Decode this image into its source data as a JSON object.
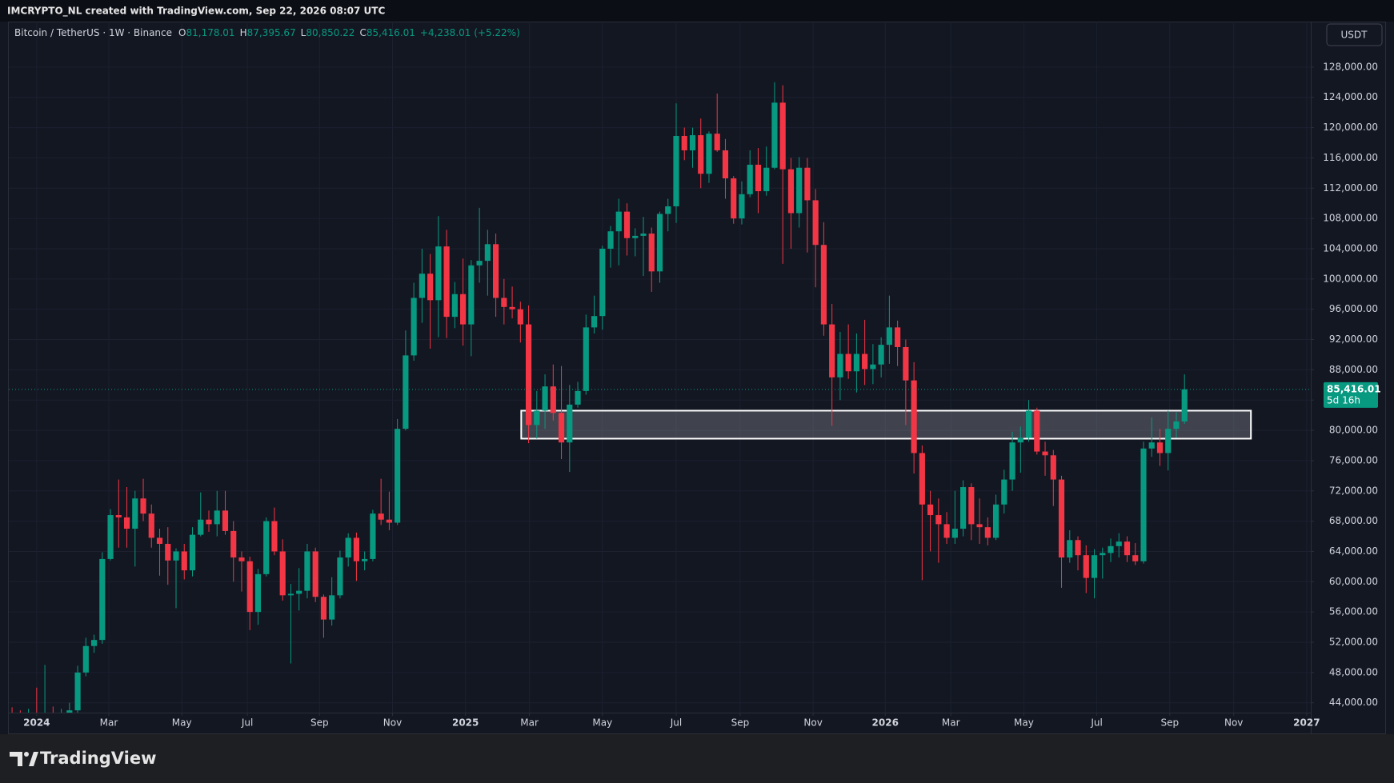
{
  "chart_data": {
    "type": "candlestick",
    "title": "IMCRYPTO_NL created with TradingView.com, Sep 22, 2026 08:07 UTC",
    "subtitle": "Bitcoin / TetherUS · 1W · Binance",
    "legend": [
      {
        "label": "O",
        "value": "81,178.01"
      },
      {
        "label": "H",
        "value": "87,395.67"
      },
      {
        "label": "L",
        "value": "80,850.22"
      },
      {
        "label": "C",
        "value": "85,416.01"
      }
    ],
    "change": "+4,238.01 (+5.22%)",
    "currency": "USDT",
    "brand": "TradingView",
    "up_color": "#089981",
    "down_color": "#f23645",
    "grid": true,
    "last_price": {
      "value": 85416.01,
      "label": "85,416.01",
      "countdown": "5d 16h"
    },
    "zone": {
      "x": [
        62.1,
        151.1
      ],
      "y": [
        78900,
        82600
      ]
    },
    "xlim": [
      -0.4,
      158.4
    ],
    "xticks": [
      {
        "value": 3.0,
        "label": "2024"
      },
      {
        "value": 11.8,
        "label": "Mar"
      },
      {
        "value": 20.7,
        "label": "May"
      },
      {
        "value": 28.7,
        "label": "Jul"
      },
      {
        "value": 37.5,
        "label": "Sep"
      },
      {
        "value": 46.4,
        "label": "Nov"
      },
      {
        "value": 55.3,
        "label": "2025"
      },
      {
        "value": 63.1,
        "label": "Mar"
      },
      {
        "value": 72.0,
        "label": "May"
      },
      {
        "value": 81.0,
        "label": "Jul"
      },
      {
        "value": 88.8,
        "label": "Sep"
      },
      {
        "value": 97.7,
        "label": "Nov"
      },
      {
        "value": 106.5,
        "label": "2026"
      },
      {
        "value": 114.5,
        "label": "Mar"
      },
      {
        "value": 123.4,
        "label": "May"
      },
      {
        "value": 132.3,
        "label": "Jul"
      },
      {
        "value": 141.2,
        "label": "Sep"
      },
      {
        "value": 149.0,
        "label": "Nov"
      },
      {
        "value": 157.9,
        "label": "2027"
      }
    ],
    "ylim": [
      42700,
      133800
    ],
    "yticks": [
      {
        "value": 44000,
        "label": "44,000.00"
      },
      {
        "value": 48000,
        "label": "48,000.00"
      },
      {
        "value": 52000,
        "label": "52,000.00"
      },
      {
        "value": 56000,
        "label": "56,000.00"
      },
      {
        "value": 60000,
        "label": "60,000.00"
      },
      {
        "value": 64000,
        "label": "64,000.00"
      },
      {
        "value": 68000,
        "label": "68,000.00"
      },
      {
        "value": 72000,
        "label": "72,000.00"
      },
      {
        "value": 76000,
        "label": "76,000.00"
      },
      {
        "value": 80000,
        "label": "80,000.00"
      },
      {
        "value": 84000,
        "label": "84,000.00"
      },
      {
        "value": 88000,
        "label": "88,000.00"
      },
      {
        "value": 92000,
        "label": "92,000.00"
      },
      {
        "value": 96000,
        "label": "96,000.00"
      },
      {
        "value": 100000,
        "label": "100,000.00"
      },
      {
        "value": 104000,
        "label": "104,000.00"
      },
      {
        "value": 108000,
        "label": "108,000.00"
      },
      {
        "value": 112000,
        "label": "112,000.00"
      },
      {
        "value": 116000,
        "label": "116,000.00"
      },
      {
        "value": 120000,
        "label": "120,000.00"
      },
      {
        "value": 124000,
        "label": "124,000.00"
      },
      {
        "value": 128000,
        "label": "128,000.00"
      }
    ],
    "open": [
      42600,
      42300,
      42000,
      42400,
      41800,
      42500,
      42000,
      42400,
      43000,
      48000,
      51500,
      52300,
      63000,
      68800,
      68500,
      67000,
      71000,
      69000,
      65800,
      65000,
      62800,
      64000,
      61500,
      66200,
      68200,
      67600,
      69400,
      66700,
      63200,
      62700,
      56000,
      61000,
      68000,
      64000,
      58200,
      58400,
      58800,
      64000,
      58000,
      55000,
      58200,
      63200,
      65800,
      62700,
      63000,
      69000,
      68200,
      67800,
      80200,
      89900,
      97500,
      100700,
      97200,
      104300,
      95000,
      98000,
      94000,
      101800,
      102400,
      104600,
      97500,
      96300,
      96000,
      94000,
      80700,
      82600,
      85800,
      82300,
      78400,
      83400,
      85200,
      93600,
      95100,
      104000,
      106300,
      108900,
      105400,
      105700,
      106000,
      101000,
      108600,
      109600,
      118900,
      117000,
      119000,
      113900,
      119200,
      117000,
      113300,
      108000,
      111200,
      115100,
      111600,
      114700,
      123300,
      114500,
      108700,
      114700,
      110400,
      104500,
      94000,
      87000,
      90100,
      87800,
      90100,
      88100,
      88700,
      91300,
      93600,
      91000,
      86600,
      77000,
      70200,
      68800,
      67600,
      65800,
      67000,
      72500,
      67600,
      67200,
      65800,
      70200,
      73500,
      78400,
      79000,
      82600,
      77200,
      76700,
      73500,
      63200,
      65500,
      63500,
      60500,
      63500,
      63800,
      64700,
      65300,
      63500,
      62700,
      77600,
      78400,
      77000,
      80200,
      81178.01
    ],
    "high": [
      43400,
      43000,
      43200,
      46000,
      49000,
      43500,
      43200,
      44000,
      48900,
      52600,
      53000,
      63900,
      69600,
      73500,
      72500,
      72000,
      73600,
      70200,
      67000,
      67200,
      64400,
      65000,
      67200,
      71800,
      69400,
      72000,
      72000,
      68000,
      64000,
      63300,
      61700,
      68500,
      69800,
      65600,
      59700,
      61800,
      65000,
      64500,
      58300,
      60600,
      64100,
      66400,
      66500,
      64000,
      69500,
      73600,
      71900,
      81500,
      93200,
      99500,
      104000,
      103300,
      108300,
      106500,
      99600,
      102700,
      102500,
      109400,
      106500,
      106000,
      100000,
      99000,
      97000,
      96500,
      85200,
      87400,
      88700,
      88500,
      86000,
      86400,
      95300,
      97800,
      104400,
      107000,
      110600,
      110000,
      106700,
      108200,
      106800,
      108900,
      110600,
      123200,
      120000,
      120000,
      121200,
      119500,
      124500,
      118500,
      113600,
      112900,
      117000,
      117300,
      117500,
      126000,
      125600,
      116000,
      116100,
      116000,
      111900,
      107500,
      96700,
      93000,
      94000,
      92800,
      94600,
      91400,
      92300,
      97800,
      94500,
      92000,
      89000,
      78000,
      72000,
      71000,
      69200,
      72000,
      73400,
      73000,
      71000,
      68500,
      71500,
      74800,
      79800,
      80500,
      84000,
      83000,
      78500,
      77400,
      74000,
      66800,
      66000,
      64800,
      64300,
      64500,
      65700,
      66400,
      66000,
      65100,
      78500,
      81700,
      80200,
      82600,
      82400,
      87395.67
    ],
    "low": [
      41800,
      41200,
      41500,
      41000,
      41300,
      41400,
      41600,
      42000,
      42600,
      47500,
      50600,
      51800,
      62800,
      64500,
      64500,
      62000,
      68000,
      64500,
      60800,
      59600,
      56500,
      60300,
      60700,
      66000,
      66600,
      66000,
      66200,
      60000,
      58700,
      53600,
      54300,
      60700,
      63500,
      57500,
      49200,
      56200,
      57800,
      57300,
      52600,
      54200,
      57800,
      62000,
      60100,
      61500,
      62700,
      67500,
      66800,
      67500,
      80000,
      89200,
      94200,
      90800,
      92300,
      92200,
      93500,
      91200,
      89800,
      99500,
      97800,
      95000,
      94000,
      94800,
      91600,
      78300,
      78900,
      80200,
      81300,
      76200,
      74500,
      83000,
      84700,
      92800,
      93300,
      101500,
      101800,
      103100,
      103000,
      100400,
      98300,
      99500,
      106300,
      107400,
      115700,
      114700,
      112000,
      112700,
      116800,
      110600,
      107300,
      107200,
      110800,
      108700,
      111000,
      114500,
      102000,
      104000,
      106800,
      103500,
      98900,
      92500,
      80600,
      84000,
      86800,
      85000,
      86000,
      86100,
      87000,
      88800,
      88500,
      80700,
      74300,
      60200,
      64000,
      62500,
      65000,
      65000,
      66000,
      65500,
      65000,
      64800,
      65500,
      69000,
      72000,
      74400,
      78500,
      76800,
      74000,
      70000,
      59200,
      62500,
      61500,
      58500,
      57800,
      60400,
      62600,
      63200,
      62600,
      62200,
      62400,
      76500,
      75300,
      74700,
      79000,
      80850.22
    ],
    "close": [
      42300,
      42000,
      42400,
      41800,
      42500,
      42000,
      42400,
      43000,
      48000,
      51500,
      52300,
      63000,
      68800,
      68500,
      67000,
      71000,
      69000,
      65800,
      65000,
      62800,
      64000,
      61500,
      66200,
      68200,
      67600,
      69400,
      66700,
      63200,
      62700,
      56000,
      61000,
      68000,
      64000,
      58200,
      58400,
      58800,
      64000,
      58000,
      55000,
      58200,
      63200,
      65800,
      62700,
      63000,
      69000,
      68200,
      67800,
      80200,
      89900,
      97500,
      100700,
      97200,
      104300,
      95000,
      98000,
      94000,
      101800,
      102400,
      104600,
      97500,
      96300,
      96000,
      94000,
      80700,
      82600,
      85800,
      82300,
      78400,
      83400,
      85200,
      93600,
      95100,
      104000,
      106300,
      108900,
      105400,
      105700,
      106000,
      101000,
      108600,
      109600,
      118900,
      117000,
      119000,
      113900,
      119200,
      117000,
      113300,
      108000,
      111200,
      115100,
      111600,
      114700,
      123300,
      114500,
      108700,
      114700,
      110400,
      104500,
      94000,
      87000,
      90100,
      87800,
      90100,
      88100,
      88700,
      91300,
      93600,
      91000,
      86600,
      77000,
      70200,
      68800,
      67600,
      65800,
      67000,
      72500,
      67600,
      67200,
      65800,
      70200,
      73500,
      78400,
      79000,
      82600,
      77200,
      76700,
      73500,
      63200,
      65500,
      63500,
      60500,
      63500,
      63800,
      64700,
      65300,
      63500,
      62700,
      77600,
      78400,
      77000,
      80200,
      81178.01,
      85416.01
    ]
  }
}
